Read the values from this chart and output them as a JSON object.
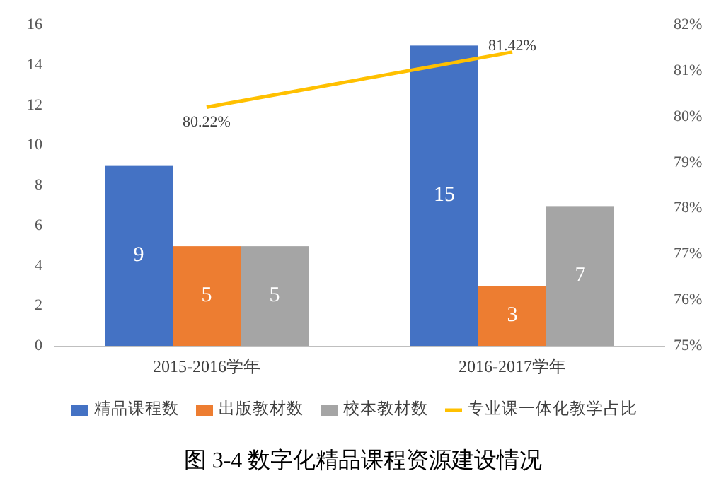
{
  "chart_data": {
    "type": "bar",
    "title": "图 3-4 数字化精品课程资源建设情况",
    "categories": [
      "2015-2016学年",
      "2016-2017学年"
    ],
    "series": [
      {
        "name": "精品课程数",
        "color": "#4472c4",
        "values": [
          9,
          15
        ]
      },
      {
        "name": "出版教材数",
        "color": "#ed7d31",
        "values": [
          5,
          3
        ]
      },
      {
        "name": "校本教材数",
        "color": "#a5a5a5",
        "values": [
          5,
          7
        ]
      },
      {
        "name": "专业课一体化教学占比",
        "type": "line",
        "axis": "y2",
        "color": "#ffc000",
        "values": [
          80.22,
          81.42
        ],
        "value_labels": [
          "80.22%",
          "81.42%"
        ]
      }
    ],
    "data_labels": true,
    "ylim": [
      0,
      16
    ],
    "yticks": [
      0,
      2,
      4,
      6,
      8,
      10,
      12,
      14,
      16
    ],
    "y2lim": [
      75,
      82
    ],
    "y2ticks": [
      {
        "value": 75,
        "label": "75%"
      },
      {
        "value": 76,
        "label": "76%"
      },
      {
        "value": 77,
        "label": "77%"
      },
      {
        "value": 78,
        "label": "78%"
      },
      {
        "value": 79,
        "label": "79%"
      },
      {
        "value": 80,
        "label": "80%"
      },
      {
        "value": 81,
        "label": "81%"
      },
      {
        "value": 82,
        "label": "82%"
      }
    ],
    "legend": "bottom"
  }
}
